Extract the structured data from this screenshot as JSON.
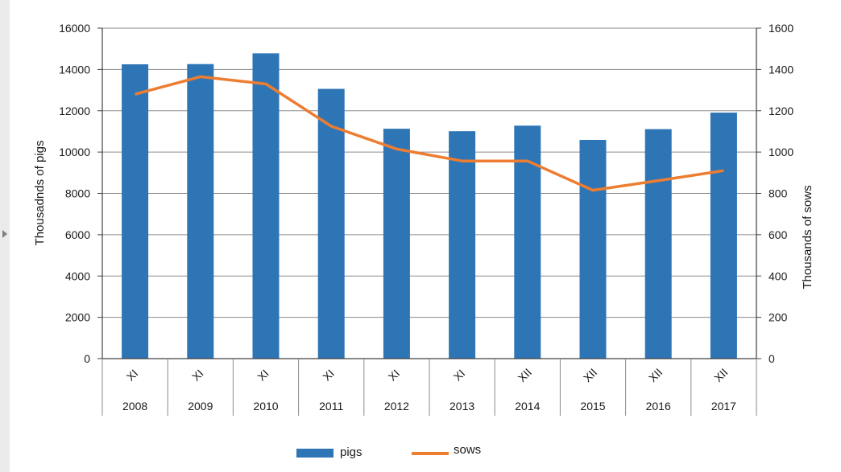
{
  "chart_data": {
    "type": "bar",
    "categories": [
      {
        "month": "XI",
        "year": "2008"
      },
      {
        "month": "XI",
        "year": "2009"
      },
      {
        "month": "XI",
        "year": "2010"
      },
      {
        "month": "XI",
        "year": "2011"
      },
      {
        "month": "XI",
        "year": "2012"
      },
      {
        "month": "XI",
        "year": "2013"
      },
      {
        "month": "XII",
        "year": "2014"
      },
      {
        "month": "XII",
        "year": "2015"
      },
      {
        "month": "XII",
        "year": "2016"
      },
      {
        "month": "XII",
        "year": "2017"
      }
    ],
    "series": [
      {
        "name": "pigs",
        "type": "bar",
        "axis": "left",
        "color": "#2e75b6",
        "values": [
          14250,
          14260,
          14780,
          13060,
          11130,
          11010,
          11280,
          10590,
          11110,
          11910
        ]
      },
      {
        "name": "sows",
        "type": "line",
        "axis": "right",
        "color": "#ed7d31",
        "values": [
          1280,
          1365,
          1330,
          1125,
          1015,
          957,
          957,
          815,
          862,
          910
        ]
      }
    ],
    "ylabel_left": "Thousadnds of pigs",
    "ylabel_right": "Thousands of sows",
    "ylim_left": [
      0,
      16000
    ],
    "ylim_right": [
      0,
      1600
    ],
    "yticks_left": [
      "0",
      "2000",
      "4000",
      "6000",
      "8000",
      "10000",
      "12000",
      "14000",
      "16000"
    ],
    "yticks_right": [
      "0",
      "200",
      "400",
      "600",
      "800",
      "1000",
      "1200",
      "1400",
      "1600"
    ],
    "grid": true,
    "legend_position": "bottom"
  }
}
